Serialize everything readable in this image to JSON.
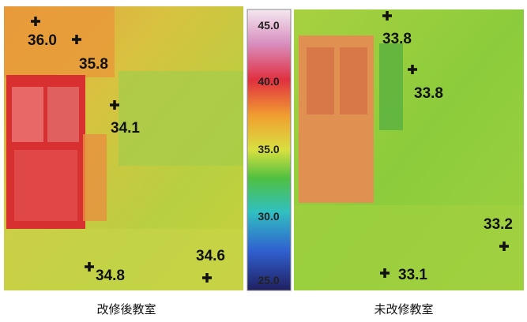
{
  "left_image": {
    "caption": "改修後教室",
    "points": [
      "36.0",
      "35.8",
      "34.1",
      "34.8",
      "34.6"
    ]
  },
  "color_scale": {
    "labels": [
      "45.0",
      "40.0",
      "35.0",
      "30.0",
      "25.0"
    ]
  },
  "right_image": {
    "caption": "未改修教室",
    "points": [
      "33.8",
      "33.8",
      "33.2",
      "33.1"
    ]
  }
}
